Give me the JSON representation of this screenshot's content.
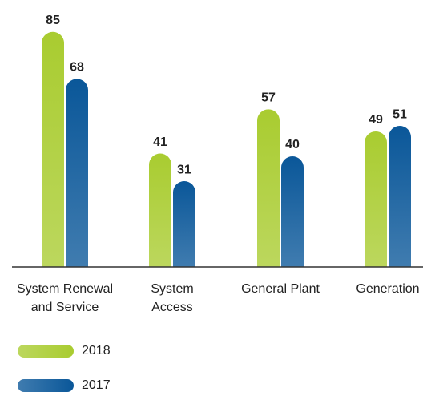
{
  "chart_data": {
    "type": "bar",
    "categories": [
      [
        "System Renewal",
        "and Service"
      ],
      [
        "System",
        "Access"
      ],
      [
        "General Plant"
      ],
      [
        "Generation"
      ]
    ],
    "series": [
      {
        "name": "2018",
        "color": "#a9cc30",
        "values": [
          85,
          41,
          57,
          49
        ]
      },
      {
        "name": "2017",
        "color": "#0a5799",
        "values": [
          68,
          31,
          40,
          51
        ]
      }
    ],
    "ylim": [
      0,
      100
    ]
  }
}
